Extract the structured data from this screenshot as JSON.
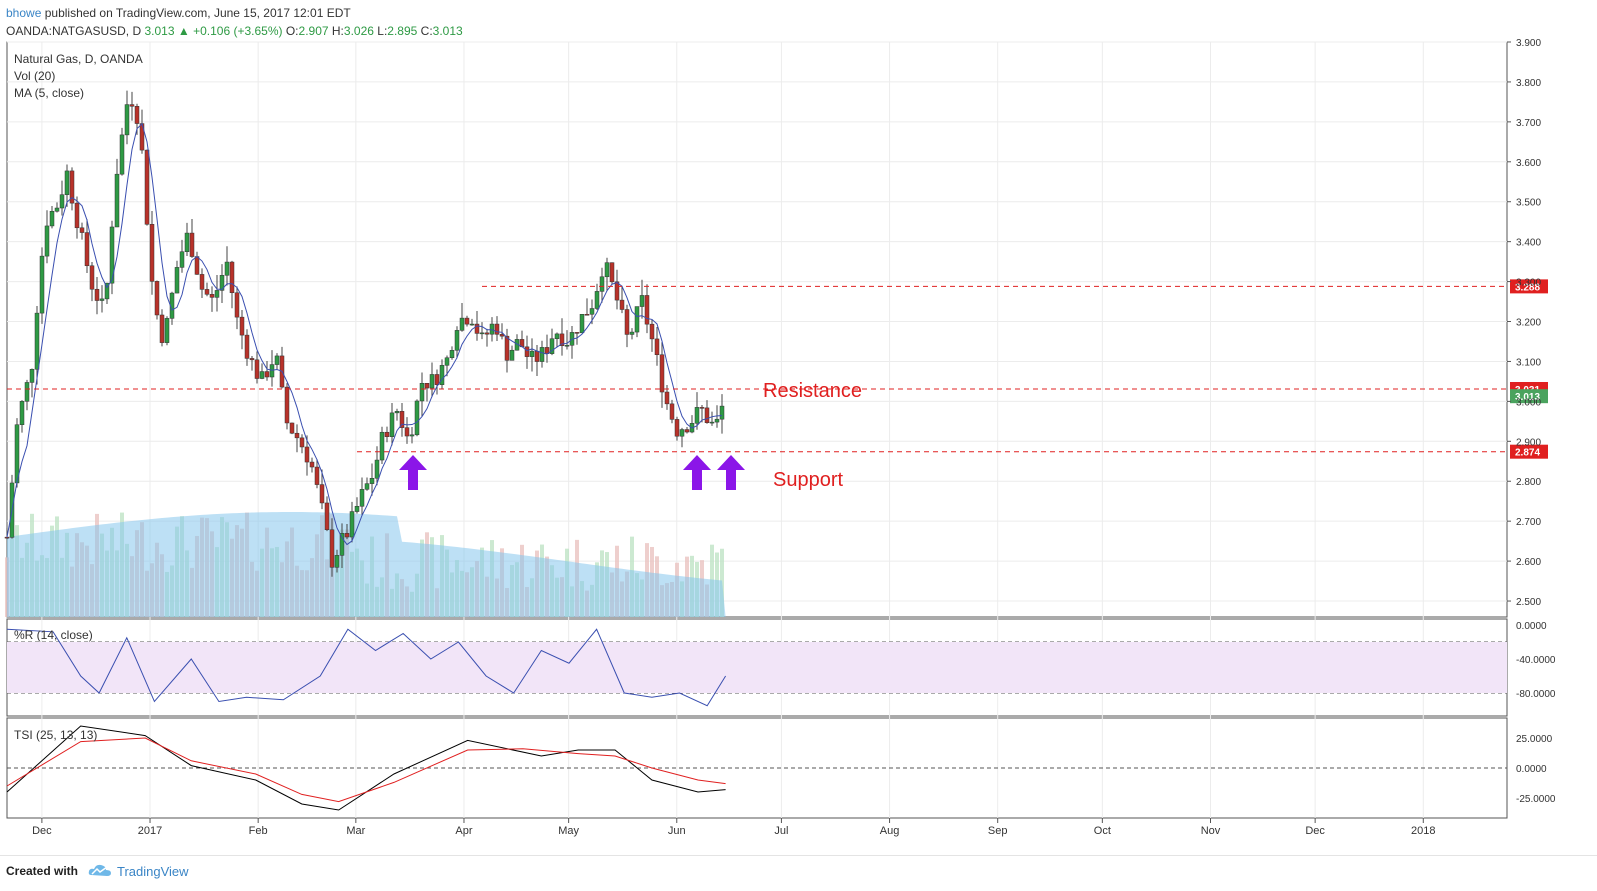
{
  "header": {
    "author": "bhowe",
    "published": "published on TradingView.com, June 15, 2017 12:01 EDT",
    "symbol": "OANDA:NATGASUSD, D",
    "last": "3.013",
    "change": "+0.106 (+3.65%)",
    "ohlc": {
      "o_label": "O:",
      "o": "2.907",
      "h_label": "H:",
      "h": "3.026",
      "l_label": "L:",
      "l": "2.895",
      "c_label": "C:",
      "c": "3.013"
    }
  },
  "legend": {
    "main": "Natural Gas, D, OANDA",
    "vol": "Vol (20)",
    "ma": "MA (5, close)",
    "wr": "%R (14, close)",
    "tsi": "TSI (25, 13, 13)"
  },
  "annotations": {
    "resistance": "Resistance",
    "support": "Support"
  },
  "colors": {
    "up": "#2e9a44",
    "down": "#b8322a",
    "ma": "#3a4fb0",
    "volume_ma": "#86c6ec",
    "hline": "#e02020",
    "arrow": "#8b16e8",
    "wr_band": "#f2e5f8",
    "tsi": "#000000",
    "tsi_signal": "#e02020"
  },
  "footer": {
    "created": "Created with",
    "brand": "TradingView",
    "brand_icon": "tradingview-cloud-icon"
  },
  "chart_data": {
    "type": "candlestick",
    "price_axis": {
      "min": 2.46,
      "max": 3.9,
      "ticks": [
        "3.900",
        "3.800",
        "3.700",
        "3.600",
        "3.500",
        "3.400",
        "3.300",
        "3.200",
        "3.100",
        "3.000",
        "2.900",
        "2.800",
        "2.700",
        "2.600",
        "2.500"
      ]
    },
    "time_axis": {
      "labels": [
        "Dec",
        "2017",
        "Feb",
        "Mar",
        "Apr",
        "May",
        "Jun",
        "Jul",
        "Aug",
        "Sep",
        "Oct",
        "Nov",
        "Dec",
        "2018"
      ]
    },
    "levels": [
      {
        "name": "resistance-top",
        "value": 3.288,
        "label": "3.288"
      },
      {
        "name": "resistance",
        "value": 3.031,
        "label": "3.031"
      },
      {
        "name": "support",
        "value": 2.874,
        "label": "2.874"
      }
    ],
    "last_price": {
      "value": 3.013,
      "label": "3.013"
    },
    "close_path": [
      [
        "2016-11-21",
        2.66
      ],
      [
        "2016-11-24",
        2.95
      ],
      [
        "2016-11-28",
        3.08
      ],
      [
        "2016-11-30",
        3.28
      ],
      [
        "2016-12-02",
        3.45
      ],
      [
        "2016-12-06",
        3.5
      ],
      [
        "2016-12-08",
        3.58
      ],
      [
        "2016-12-12",
        3.42
      ],
      [
        "2016-12-15",
        3.3
      ],
      [
        "2016-12-19",
        3.22
      ],
      [
        "2016-12-22",
        3.55
      ],
      [
        "2016-12-26",
        3.78
      ],
      [
        "2016-12-29",
        3.7
      ],
      [
        "2017-01-02",
        3.25
      ],
      [
        "2017-01-05",
        3.15
      ],
      [
        "2017-01-09",
        3.35
      ],
      [
        "2017-01-12",
        3.42
      ],
      [
        "2017-01-16",
        3.28
      ],
      [
        "2017-01-19",
        3.25
      ],
      [
        "2017-01-23",
        3.35
      ],
      [
        "2017-01-26",
        3.2
      ],
      [
        "2017-01-30",
        3.1
      ],
      [
        "2017-02-02",
        3.05
      ],
      [
        "2017-02-06",
        3.12
      ],
      [
        "2017-02-09",
        2.95
      ],
      [
        "2017-02-13",
        2.9
      ],
      [
        "2017-02-16",
        2.85
      ],
      [
        "2017-02-20",
        2.7
      ],
      [
        "2017-02-22",
        2.6
      ],
      [
        "2017-02-27",
        2.68
      ],
      [
        "2017-03-02",
        2.75
      ],
      [
        "2017-03-06",
        2.82
      ],
      [
        "2017-03-09",
        2.92
      ],
      [
        "2017-03-13",
        2.98
      ],
      [
        "2017-03-16",
        2.9
      ],
      [
        "2017-03-20",
        3.05
      ],
      [
        "2017-03-23",
        3.05
      ],
      [
        "2017-03-27",
        3.1
      ],
      [
        "2017-03-30",
        3.2
      ],
      [
        "2017-04-03",
        3.22
      ],
      [
        "2017-04-06",
        3.15
      ],
      [
        "2017-04-10",
        3.2
      ],
      [
        "2017-04-13",
        3.12
      ],
      [
        "2017-04-17",
        3.15
      ],
      [
        "2017-04-20",
        3.1
      ],
      [
        "2017-04-24",
        3.12
      ],
      [
        "2017-04-27",
        3.18
      ],
      [
        "2017-05-01",
        3.15
      ],
      [
        "2017-05-04",
        3.2
      ],
      [
        "2017-05-08",
        3.25
      ],
      [
        "2017-05-11",
        3.35
      ],
      [
        "2017-05-15",
        3.25
      ],
      [
        "2017-05-18",
        3.15
      ],
      [
        "2017-05-22",
        3.25
      ],
      [
        "2017-05-25",
        3.15
      ],
      [
        "2017-05-29",
        3.0
      ],
      [
        "2017-06-01",
        2.93
      ],
      [
        "2017-06-05",
        2.95
      ],
      [
        "2017-06-08",
        2.98
      ],
      [
        "2017-06-12",
        2.93
      ],
      [
        "2017-06-15",
        3.013
      ]
    ],
    "volume_note": "Vol (20) histogram with volume moving average",
    "williams_r": {
      "ticks": [
        "0.0000",
        "-40.0000",
        "-80.0000"
      ],
      "band": [
        -20,
        -80
      ],
      "path": [
        [
          0,
          -5
        ],
        [
          0.05,
          -8
        ],
        [
          0.08,
          -60
        ],
        [
          0.1,
          -80
        ],
        [
          0.13,
          -15
        ],
        [
          0.16,
          -90
        ],
        [
          0.2,
          -40
        ],
        [
          0.23,
          -90
        ],
        [
          0.26,
          -85
        ],
        [
          0.3,
          -88
        ],
        [
          0.34,
          -60
        ],
        [
          0.37,
          -5
        ],
        [
          0.4,
          -30
        ],
        [
          0.43,
          -10
        ],
        [
          0.46,
          -40
        ],
        [
          0.49,
          -20
        ],
        [
          0.52,
          -60
        ],
        [
          0.55,
          -80
        ],
        [
          0.58,
          -30
        ],
        [
          0.61,
          -45
        ],
        [
          0.64,
          -5
        ],
        [
          0.67,
          -80
        ],
        [
          0.7,
          -85
        ],
        [
          0.73,
          -80
        ],
        [
          0.76,
          -95
        ],
        [
          0.78,
          -60
        ]
      ]
    },
    "tsi": {
      "ticks": [
        "25.0000",
        "0.0000",
        "-25.0000"
      ],
      "tsi_path": [
        [
          0,
          -20
        ],
        [
          0.08,
          35
        ],
        [
          0.15,
          27
        ],
        [
          0.2,
          2
        ],
        [
          0.27,
          -10
        ],
        [
          0.32,
          -30
        ],
        [
          0.36,
          -35
        ],
        [
          0.42,
          -5
        ],
        [
          0.5,
          23
        ],
        [
          0.58,
          10
        ],
        [
          0.62,
          15
        ],
        [
          0.66,
          15
        ],
        [
          0.7,
          -10
        ],
        [
          0.75,
          -20
        ],
        [
          0.78,
          -18
        ]
      ],
      "signal_path": [
        [
          0,
          -15
        ],
        [
          0.08,
          22
        ],
        [
          0.15,
          25
        ],
        [
          0.2,
          6
        ],
        [
          0.27,
          -5
        ],
        [
          0.32,
          -22
        ],
        [
          0.36,
          -28
        ],
        [
          0.42,
          -12
        ],
        [
          0.5,
          15
        ],
        [
          0.56,
          16
        ],
        [
          0.62,
          12
        ],
        [
          0.66,
          10
        ],
        [
          0.7,
          0
        ],
        [
          0.75,
          -10
        ],
        [
          0.78,
          -13
        ]
      ]
    }
  }
}
